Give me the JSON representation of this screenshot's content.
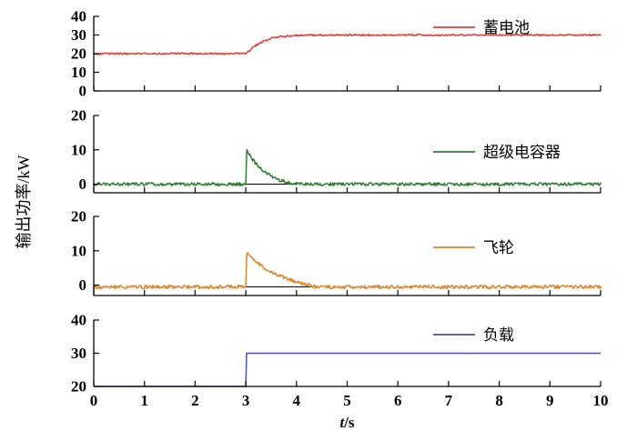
{
  "figure": {
    "background": "#ffffff",
    "xlabel": "t/s",
    "ylabel": "输出功率/kW"
  },
  "x_axis": {
    "min": 0,
    "max": 10,
    "ticks": [
      0,
      1,
      2,
      3,
      4,
      5,
      6,
      7,
      8,
      9,
      10
    ],
    "label": "t/s"
  },
  "chart_data": [
    {
      "type": "line",
      "name": "battery",
      "legend": "蓄电池",
      "color": "#e04038",
      "ylim": [
        0,
        40
      ],
      "yticks": [
        0,
        10,
        20,
        30,
        40
      ],
      "noise": 0.45,
      "keypoints": [
        [
          0,
          20
        ],
        [
          3,
          20
        ],
        [
          3.05,
          21.2
        ],
        [
          3.2,
          24.5
        ],
        [
          3.4,
          27.3
        ],
        [
          3.6,
          28.9
        ],
        [
          3.9,
          29.7
        ],
        [
          4.2,
          30
        ],
        [
          10,
          30
        ]
      ]
    },
    {
      "type": "line",
      "name": "supercapacitor",
      "legend": "超级电容器",
      "color": "#2e7d32",
      "ylim": [
        -2.5,
        20
      ],
      "yticks": [
        0,
        10,
        20
      ],
      "noise": 0.45,
      "keypoints": [
        [
          0,
          0
        ],
        [
          3,
          0
        ],
        [
          3.02,
          10
        ],
        [
          3.1,
          7.8
        ],
        [
          3.2,
          6.0
        ],
        [
          3.3,
          4.5
        ],
        [
          3.4,
          3.3
        ],
        [
          3.5,
          2.4
        ],
        [
          3.6,
          1.6
        ],
        [
          3.7,
          1.0
        ],
        [
          3.8,
          0.6
        ],
        [
          3.9,
          0.3
        ],
        [
          4.0,
          0.1
        ],
        [
          4.1,
          0
        ],
        [
          10,
          0
        ]
      ],
      "baseline": [
        [
          3,
          0
        ],
        [
          4.0,
          0
        ]
      ]
    },
    {
      "type": "line",
      "name": "flywheel",
      "legend": "飞轮",
      "color": "#de8327",
      "ylim": [
        -3,
        20
      ],
      "yticks": [
        0,
        10,
        20
      ],
      "noise": 0.5,
      "keypoints": [
        [
          0,
          -0.5
        ],
        [
          3,
          -0.5
        ],
        [
          3.02,
          9.5
        ],
        [
          3.15,
          7.4
        ],
        [
          3.3,
          5.7
        ],
        [
          3.5,
          3.9
        ],
        [
          3.7,
          2.5
        ],
        [
          3.9,
          1.4
        ],
        [
          4.1,
          0.5
        ],
        [
          4.3,
          -0.2
        ],
        [
          4.4,
          -0.5
        ],
        [
          10,
          -0.5
        ]
      ],
      "baseline": [
        [
          3,
          -0.5
        ],
        [
          4.3,
          -0.5
        ]
      ]
    },
    {
      "type": "line",
      "name": "load",
      "legend": "负载",
      "color": "#4c51a2",
      "ylim": [
        20,
        40
      ],
      "yticks": [
        20,
        30,
        40
      ],
      "noise": 0,
      "keypoints": [
        [
          0,
          20
        ],
        [
          3,
          20
        ],
        [
          3,
          30
        ],
        [
          10,
          30
        ]
      ]
    }
  ]
}
